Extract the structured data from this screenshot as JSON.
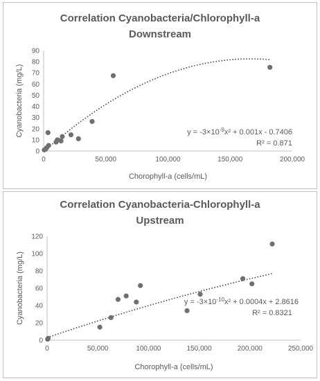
{
  "chart_data": [
    {
      "type": "scatter",
      "title_lines": [
        "Correlation Cyanobacteria/Chlorophyll-a",
        "Downstream"
      ],
      "xlabel": "Chorophyll-a (cells/mL)",
      "ylabel": "Cyanobacteria (mg/L)",
      "xlim": [
        0,
        200000
      ],
      "ylim": [
        0,
        90
      ],
      "xticks": [
        0,
        50000,
        100000,
        150000,
        200000
      ],
      "xtick_labels": [
        "0",
        "50,000",
        "100,000",
        "150,000",
        "200,000"
      ],
      "yticks": [
        0,
        10,
        20,
        30,
        40,
        50,
        60,
        70,
        80,
        90
      ],
      "ytick_labels": [
        "0",
        "10",
        "20",
        "30",
        "40",
        "50",
        "60",
        "70",
        "80",
        "90"
      ],
      "points": [
        {
          "x": 500,
          "y": 1
        },
        {
          "x": 1500,
          "y": 1.5
        },
        {
          "x": 2500,
          "y": 3
        },
        {
          "x": 4000,
          "y": 5
        },
        {
          "x": 3500,
          "y": 16.5
        },
        {
          "x": 10000,
          "y": 8
        },
        {
          "x": 11000,
          "y": 10
        },
        {
          "x": 14000,
          "y": 9
        },
        {
          "x": 15000,
          "y": 13
        },
        {
          "x": 22000,
          "y": 14.5
        },
        {
          "x": 28000,
          "y": 11
        },
        {
          "x": 39000,
          "y": 26.5
        },
        {
          "x": 56000,
          "y": 67.5
        },
        {
          "x": 182000,
          "y": 75
        }
      ],
      "trendline": {
        "type": "polynomial",
        "a": -3e-09,
        "b": 0.001,
        "c": -0.7406,
        "x_range": [
          0,
          182000
        ]
      },
      "equation": {
        "pre": "y = -3×10",
        "exp": "-9",
        "post": "x² + 0.001x - 0.7406"
      },
      "r2": "R² = 0.871",
      "grid": false
    },
    {
      "type": "scatter",
      "title_lines": [
        "Correlation Cyanobacteria-Chlorophyll-a",
        "Upstream"
      ],
      "xlabel": "Chorophyll-a (cells/mL)",
      "ylabel": "Cyanobacteria (mg/L)",
      "xlim": [
        0,
        250000
      ],
      "ylim": [
        0,
        120
      ],
      "xticks": [
        0,
        50000,
        100000,
        150000,
        200000,
        250000
      ],
      "xtick_labels": [
        "0",
        "50,000",
        "100,000",
        "150,000",
        "200,000",
        "250,000"
      ],
      "yticks": [
        0,
        20,
        40,
        60,
        80,
        100,
        120
      ],
      "ytick_labels": [
        "0",
        "20",
        "40",
        "60",
        "80",
        "100",
        "120"
      ],
      "points": [
        {
          "x": 500,
          "y": 1
        },
        {
          "x": 1000,
          "y": 2
        },
        {
          "x": 52000,
          "y": 15
        },
        {
          "x": 63000,
          "y": 26
        },
        {
          "x": 70000,
          "y": 47
        },
        {
          "x": 78000,
          "y": 51
        },
        {
          "x": 88000,
          "y": 44
        },
        {
          "x": 92000,
          "y": 63
        },
        {
          "x": 138000,
          "y": 34
        },
        {
          "x": 151000,
          "y": 53
        },
        {
          "x": 193000,
          "y": 71
        },
        {
          "x": 202000,
          "y": 65
        },
        {
          "x": 222000,
          "y": 111
        }
      ],
      "trendline": {
        "type": "polynomial",
        "a": -3e-10,
        "b": 0.0004,
        "c": 2.8616,
        "x_range": [
          0,
          222000
        ]
      },
      "equation": {
        "pre": "y = -3×10",
        "exp": "-10",
        "post": "x² + 0.0004x + 2.8616"
      },
      "r2": "R² = 0.8321",
      "grid": false
    }
  ]
}
